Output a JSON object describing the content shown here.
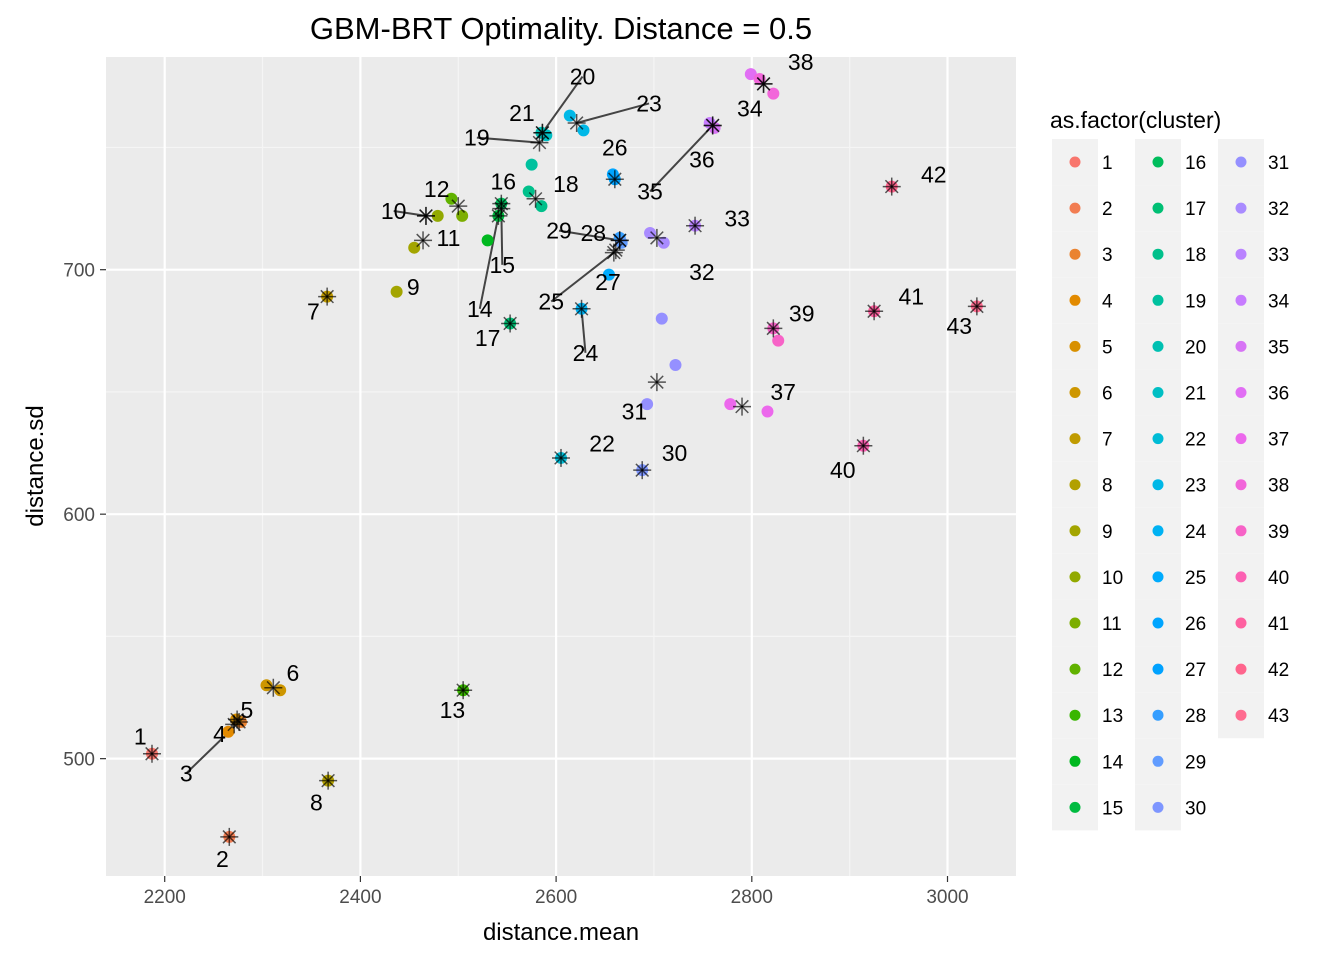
{
  "chart_data": {
    "type": "scatter",
    "title": "GBM-BRT Optimality. Distance = 0.5",
    "xlabel": "distance.mean",
    "ylabel": "distance.sd",
    "xlim": [
      2140,
      3070
    ],
    "ylim": [
      452,
      787
    ],
    "xticks": [
      2200,
      2400,
      2600,
      2800,
      3000
    ],
    "yticks": [
      500,
      600,
      700
    ],
    "grid": true,
    "legend": {
      "title": "as.factor(cluster)",
      "placement": "right",
      "entries": [
        "1",
        "2",
        "3",
        "4",
        "5",
        "6",
        "7",
        "8",
        "9",
        "10",
        "11",
        "12",
        "13",
        "14",
        "15",
        "16",
        "17",
        "18",
        "19",
        "20",
        "21",
        "22",
        "23",
        "24",
        "25",
        "26",
        "27",
        "28",
        "29",
        "30",
        "31",
        "32",
        "33",
        "34",
        "35",
        "36",
        "37",
        "38",
        "39",
        "40",
        "41",
        "42",
        "43"
      ]
    },
    "palette": [
      "#F8766D",
      "#F27D52",
      "#EA8331",
      "#E28A00",
      "#D89000",
      "#CD9600",
      "#C09B00",
      "#B2A000",
      "#A3A500",
      "#92A900",
      "#7CAE00",
      "#61B200",
      "#39B600",
      "#00B81F",
      "#00BB40",
      "#00BD5C",
      "#00BF74",
      "#00C08B",
      "#00C19F",
      "#00C0B2",
      "#00BFC4",
      "#00BCD6",
      "#00B8E7",
      "#00B2F3",
      "#00ABFD",
      "#00A5FF",
      "#00A2FF",
      "#359EFF",
      "#619CFF",
      "#7E96FF",
      "#9590FF",
      "#A98BFF",
      "#BA83FF",
      "#C77CFF",
      "#D774F5",
      "#E16EF4",
      "#EC68EC",
      "#F266DA",
      "#F763C7",
      "#FC61B3",
      "#FE61A0",
      "#FF658D",
      "#FF6C90"
    ],
    "points": [
      {
        "c": 1,
        "x": 2187,
        "y": 502
      },
      {
        "c": 2,
        "x": 2266,
        "y": 468
      },
      {
        "c": 3,
        "x": 2278,
        "y": 515
      },
      {
        "c": 4,
        "x": 2265,
        "y": 511
      },
      {
        "c": 5,
        "x": 2273,
        "y": 516
      },
      {
        "c": 6,
        "x": 2304,
        "y": 530
      },
      {
        "c": 6,
        "x": 2318,
        "y": 528
      },
      {
        "c": 7,
        "x": 2366,
        "y": 689
      },
      {
        "c": 8,
        "x": 2367,
        "y": 491
      },
      {
        "c": 9,
        "x": 2437,
        "y": 691
      },
      {
        "c": 9,
        "x": 2455,
        "y": 709
      },
      {
        "c": 10,
        "x": 2479,
        "y": 722
      },
      {
        "c": 11,
        "x": 2504,
        "y": 722
      },
      {
        "c": 12,
        "x": 2493,
        "y": 729
      },
      {
        "c": 13,
        "x": 2505,
        "y": 528
      },
      {
        "c": 14,
        "x": 2530,
        "y": 712
      },
      {
        "c": 15,
        "x": 2541,
        "y": 722
      },
      {
        "c": 16,
        "x": 2544,
        "y": 727
      },
      {
        "c": 17,
        "x": 2553,
        "y": 678
      },
      {
        "c": 18,
        "x": 2572,
        "y": 732
      },
      {
        "c": 18,
        "x": 2585,
        "y": 726
      },
      {
        "c": 19,
        "x": 2575,
        "y": 743
      },
      {
        "c": 20,
        "x": 2585,
        "y": 756
      },
      {
        "c": 21,
        "x": 2590,
        "y": 755
      },
      {
        "c": 22,
        "x": 2605,
        "y": 623
      },
      {
        "c": 23,
        "x": 2614,
        "y": 763
      },
      {
        "c": 23,
        "x": 2628,
        "y": 757
      },
      {
        "c": 24,
        "x": 2626,
        "y": 684
      },
      {
        "c": 25,
        "x": 2654,
        "y": 698
      },
      {
        "c": 26,
        "x": 2658,
        "y": 739
      },
      {
        "c": 27,
        "x": 2660,
        "y": 737
      },
      {
        "c": 28,
        "x": 2665,
        "y": 713
      },
      {
        "c": 29,
        "x": 2667,
        "y": 711
      },
      {
        "c": 30,
        "x": 2688,
        "y": 618
      },
      {
        "c": 31,
        "x": 2693,
        "y": 645
      },
      {
        "c": 31,
        "x": 2708,
        "y": 680
      },
      {
        "c": 31,
        "x": 2722,
        "y": 661
      },
      {
        "c": 32,
        "x": 2696,
        "y": 715
      },
      {
        "c": 32,
        "x": 2710,
        "y": 711
      },
      {
        "c": 33,
        "x": 2742,
        "y": 718
      },
      {
        "c": 34,
        "x": 2757,
        "y": 760
      },
      {
        "c": 35,
        "x": 2762,
        "y": 758
      },
      {
        "c": 36,
        "x": 2799,
        "y": 780
      },
      {
        "c": 37,
        "x": 2778,
        "y": 645
      },
      {
        "c": 37,
        "x": 2816,
        "y": 642
      },
      {
        "c": 38,
        "x": 2808,
        "y": 778
      },
      {
        "c": 38,
        "x": 2822,
        "y": 772
      },
      {
        "c": 39,
        "x": 2822,
        "y": 676
      },
      {
        "c": 39,
        "x": 2827,
        "y": 671
      },
      {
        "c": 40,
        "x": 2914,
        "y": 628
      },
      {
        "c": 41,
        "x": 2925,
        "y": 683
      },
      {
        "c": 42,
        "x": 2943,
        "y": 734
      },
      {
        "c": 43,
        "x": 3030,
        "y": 685
      }
    ],
    "centroids": [
      {
        "c": 1,
        "x": 2187,
        "y": 502
      },
      {
        "c": 2,
        "x": 2266,
        "y": 468
      },
      {
        "c": 3,
        "x": 2276,
        "y": 515
      },
      {
        "c": 4,
        "x": 2271,
        "y": 514
      },
      {
        "c": 5,
        "x": 2274,
        "y": 516
      },
      {
        "c": 6,
        "x": 2311,
        "y": 529
      },
      {
        "c": 7,
        "x": 2366,
        "y": 689
      },
      {
        "c": 8,
        "x": 2367,
        "y": 491
      },
      {
        "c": 9,
        "x": 2464,
        "y": 712
      },
      {
        "c": 10,
        "x": 2467,
        "y": 722
      },
      {
        "c": 11,
        "x": 2500,
        "y": 726
      },
      {
        "c": 12,
        "x": 2467,
        "y": 722
      },
      {
        "c": 13,
        "x": 2505,
        "y": 528
      },
      {
        "c": 14,
        "x": 2541,
        "y": 722
      },
      {
        "c": 15,
        "x": 2544,
        "y": 725
      },
      {
        "c": 16,
        "x": 2544,
        "y": 727
      },
      {
        "c": 17,
        "x": 2553,
        "y": 678
      },
      {
        "c": 18,
        "x": 2579,
        "y": 729
      },
      {
        "c": 19,
        "x": 2583,
        "y": 752
      },
      {
        "c": 20,
        "x": 2586,
        "y": 756
      },
      {
        "c": 21,
        "x": 2586,
        "y": 756
      },
      {
        "c": 22,
        "x": 2605,
        "y": 623
      },
      {
        "c": 23,
        "x": 2621,
        "y": 760
      },
      {
        "c": 24,
        "x": 2626,
        "y": 684
      },
      {
        "c": 25,
        "x": 2659,
        "y": 707
      },
      {
        "c": 26,
        "x": 2660,
        "y": 737
      },
      {
        "c": 27,
        "x": 2661,
        "y": 708
      },
      {
        "c": 28,
        "x": 2665,
        "y": 712
      },
      {
        "c": 29,
        "x": 2665,
        "y": 712
      },
      {
        "c": 30,
        "x": 2688,
        "y": 618
      },
      {
        "c": 31,
        "x": 2703,
        "y": 654
      },
      {
        "c": 32,
        "x": 2703,
        "y": 713
      },
      {
        "c": 33,
        "x": 2742,
        "y": 718
      },
      {
        "c": 34,
        "x": 2760,
        "y": 759
      },
      {
        "c": 35,
        "x": 2760,
        "y": 759
      },
      {
        "c": 36,
        "x": 2812,
        "y": 776
      },
      {
        "c": 37,
        "x": 2790,
        "y": 644
      },
      {
        "c": 38,
        "x": 2812,
        "y": 776
      },
      {
        "c": 39,
        "x": 2822,
        "y": 676
      },
      {
        "c": 40,
        "x": 2914,
        "y": 628
      },
      {
        "c": 41,
        "x": 2925,
        "y": 683
      },
      {
        "c": 42,
        "x": 2943,
        "y": 734
      },
      {
        "c": 43,
        "x": 3030,
        "y": 685
      }
    ],
    "labels": [
      {
        "t": "1",
        "x": 2175,
        "y": 509,
        "ax": 2187,
        "ay": 502,
        "line": false
      },
      {
        "t": "2",
        "x": 2259,
        "y": 459,
        "ax": 2266,
        "ay": 468,
        "line": false
      },
      {
        "t": "3",
        "x": 2222,
        "y": 494,
        "ax": 2271,
        "ay": 513,
        "line": true
      },
      {
        "t": "4",
        "x": 2256,
        "y": 510,
        "ax": 2271,
        "ay": 514,
        "line": false
      },
      {
        "t": "5",
        "x": 2284,
        "y": 520,
        "ax": 2274,
        "ay": 516,
        "line": false
      },
      {
        "t": "6",
        "x": 2331,
        "y": 535,
        "ax": 2311,
        "ay": 529,
        "line": false
      },
      {
        "t": "7",
        "x": 2352,
        "y": 683,
        "ax": 2366,
        "ay": 689,
        "line": false
      },
      {
        "t": "8",
        "x": 2355,
        "y": 482,
        "ax": 2367,
        "ay": 491,
        "line": false
      },
      {
        "t": "9",
        "x": 2454,
        "y": 693,
        "ax": 2464,
        "ay": 712,
        "line": false
      },
      {
        "t": "10",
        "x": 2434,
        "y": 724,
        "ax": 2467,
        "ay": 722,
        "line": true
      },
      {
        "t": "11",
        "x": 2490,
        "y": 713,
        "ax": 2500,
        "ay": 726,
        "line": false
      },
      {
        "t": "12",
        "x": 2478,
        "y": 733,
        "ax": 2467,
        "ay": 722,
        "line": false
      },
      {
        "t": "13",
        "x": 2494,
        "y": 520,
        "ax": 2505,
        "ay": 528,
        "line": false
      },
      {
        "t": "14",
        "x": 2522,
        "y": 684,
        "ax": 2541,
        "ay": 722,
        "line": true
      },
      {
        "t": "15",
        "x": 2545,
        "y": 702,
        "ax": 2544,
        "ay": 725,
        "line": true
      },
      {
        "t": "16",
        "x": 2546,
        "y": 736,
        "ax": 2544,
        "ay": 727,
        "line": false
      },
      {
        "t": "17",
        "x": 2530,
        "y": 672,
        "ax": 2553,
        "ay": 678,
        "line": false
      },
      {
        "t": "18",
        "x": 2610,
        "y": 735,
        "ax": 2579,
        "ay": 729,
        "line": false
      },
      {
        "t": "19",
        "x": 2519,
        "y": 754,
        "ax": 2583,
        "ay": 752,
        "line": true
      },
      {
        "t": "20",
        "x": 2627,
        "y": 779,
        "ax": 2586,
        "ay": 756,
        "line": true
      },
      {
        "t": "21",
        "x": 2565,
        "y": 764,
        "ax": 2586,
        "ay": 756,
        "line": false
      },
      {
        "t": "22",
        "x": 2647,
        "y": 629,
        "ax": 2605,
        "ay": 623,
        "line": false
      },
      {
        "t": "23",
        "x": 2695,
        "y": 768,
        "ax": 2621,
        "ay": 760,
        "line": true
      },
      {
        "t": "24",
        "x": 2630,
        "y": 666,
        "ax": 2626,
        "ay": 684,
        "line": true
      },
      {
        "t": "25",
        "x": 2595,
        "y": 687,
        "ax": 2659,
        "ay": 707,
        "line": true
      },
      {
        "t": "26",
        "x": 2660,
        "y": 750,
        "ax": 2660,
        "ay": 737,
        "line": false
      },
      {
        "t": "27",
        "x": 2653,
        "y": 695,
        "ax": 2661,
        "ay": 708,
        "line": false
      },
      {
        "t": "28",
        "x": 2638,
        "y": 715,
        "ax": 2665,
        "ay": 712,
        "line": false
      },
      {
        "t": "29",
        "x": 2603,
        "y": 716,
        "ax": 2665,
        "ay": 712,
        "line": true
      },
      {
        "t": "30",
        "x": 2721,
        "y": 625,
        "ax": 2688,
        "ay": 618,
        "line": false
      },
      {
        "t": "31",
        "x": 2680,
        "y": 642,
        "ax": 2703,
        "ay": 654,
        "line": false
      },
      {
        "t": "32",
        "x": 2749,
        "y": 699,
        "ax": 2703,
        "ay": 713,
        "line": false
      },
      {
        "t": "33",
        "x": 2785,
        "y": 721,
        "ax": 2742,
        "ay": 718,
        "line": false
      },
      {
        "t": "34",
        "x": 2798,
        "y": 766,
        "ax": 2760,
        "ay": 759,
        "line": false
      },
      {
        "t": "35",
        "x": 2696,
        "y": 732,
        "ax": 2760,
        "ay": 759,
        "line": true
      },
      {
        "t": "36",
        "x": 2749,
        "y": 745,
        "ax": 2760,
        "ay": 759,
        "line": false
      },
      {
        "t": "37",
        "x": 2832,
        "y": 650,
        "ax": 2790,
        "ay": 644,
        "line": false
      },
      {
        "t": "38",
        "x": 2850,
        "y": 785,
        "ax": 2812,
        "ay": 776,
        "line": false
      },
      {
        "t": "39",
        "x": 2851,
        "y": 682,
        "ax": 2822,
        "ay": 676,
        "line": false
      },
      {
        "t": "40",
        "x": 2893,
        "y": 618,
        "ax": 2914,
        "ay": 628,
        "line": false
      },
      {
        "t": "41",
        "x": 2963,
        "y": 689,
        "ax": 2925,
        "ay": 683,
        "line": false
      },
      {
        "t": "42",
        "x": 2986,
        "y": 739,
        "ax": 2943,
        "ay": 734,
        "line": false
      },
      {
        "t": "43",
        "x": 3012,
        "y": 677,
        "ax": 3030,
        "ay": 685,
        "line": false
      }
    ]
  }
}
